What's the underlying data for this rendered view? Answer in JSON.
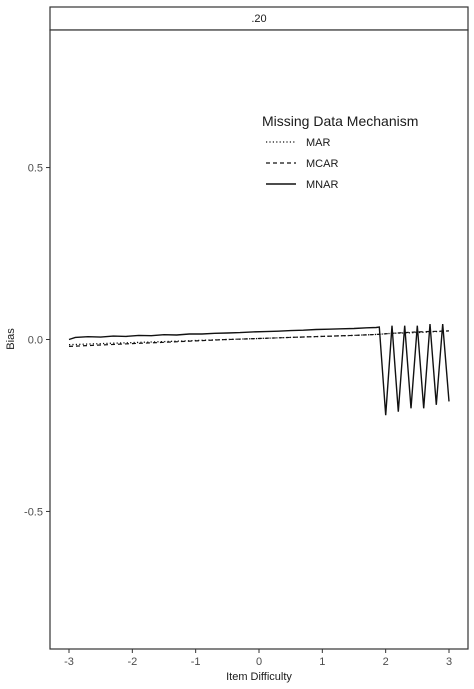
{
  "chart_data": {
    "type": "line",
    "facet_label": ".20",
    "xlabel": "Item Difficulty",
    "ylabel": "Bias",
    "xlim": [
      -3.3,
      3.3
    ],
    "ylim": [
      -0.9,
      0.9
    ],
    "x_ticks": [
      -3,
      -2,
      -1,
      0,
      1,
      2,
      3
    ],
    "x_tick_labels": [
      "-3",
      "-2",
      "-1",
      "0",
      "1",
      "2",
      "3"
    ],
    "y_ticks": [
      -0.5,
      0.0,
      0.5
    ],
    "y_tick_labels": [
      "-0.5",
      "0.0",
      "0.5"
    ],
    "grid": false,
    "legend": {
      "title": "Missing Data Mechanism",
      "placement": "top-right inside plot"
    },
    "series": [
      {
        "name": "MAR",
        "linestyle": "dotted",
        "x": [
          -3.0,
          -2.5,
          -2.0,
          -1.5,
          -1.0,
          -0.5,
          0.0,
          0.5,
          1.0,
          1.5,
          1.9,
          2.1,
          2.5,
          3.0
        ],
        "y": [
          -0.015,
          -0.012,
          -0.009,
          -0.006,
          -0.003,
          0.0,
          0.003,
          0.006,
          0.009,
          0.012,
          0.015,
          0.018,
          0.02,
          0.025
        ]
      },
      {
        "name": "MCAR",
        "linestyle": "dashed",
        "x": [
          -3.0,
          -2.5,
          -2.0,
          -1.5,
          -1.0,
          -0.5,
          0.0,
          0.5,
          1.0,
          1.5,
          1.9,
          2.1,
          2.5,
          3.0
        ],
        "y": [
          -0.02,
          -0.016,
          -0.012,
          -0.008,
          -0.004,
          0.0,
          0.003,
          0.006,
          0.009,
          0.012,
          0.015,
          0.018,
          0.022,
          0.025
        ]
      },
      {
        "name": "MNAR",
        "linestyle": "solid",
        "x": [
          -3.0,
          -2.9,
          -2.7,
          -2.5,
          -2.3,
          -2.1,
          -1.9,
          -1.7,
          -1.5,
          -1.3,
          -1.1,
          -0.9,
          -0.7,
          -0.5,
          -0.3,
          -0.1,
          0.1,
          0.3,
          0.5,
          0.7,
          0.9,
          1.1,
          1.3,
          1.5,
          1.7,
          1.85,
          1.9,
          2.0,
          2.1,
          2.2,
          2.3,
          2.4,
          2.5,
          2.6,
          2.7,
          2.8,
          2.9,
          3.0
        ],
        "y": [
          0.0,
          0.006,
          0.008,
          0.007,
          0.01,
          0.009,
          0.012,
          0.011,
          0.014,
          0.013,
          0.016,
          0.016,
          0.018,
          0.019,
          0.02,
          0.022,
          0.023,
          0.024,
          0.026,
          0.027,
          0.029,
          0.03,
          0.031,
          0.032,
          0.034,
          0.035,
          0.036,
          -0.22,
          0.04,
          -0.21,
          0.04,
          -0.2,
          0.04,
          -0.2,
          0.045,
          -0.19,
          0.045,
          -0.18
        ]
      }
    ]
  }
}
